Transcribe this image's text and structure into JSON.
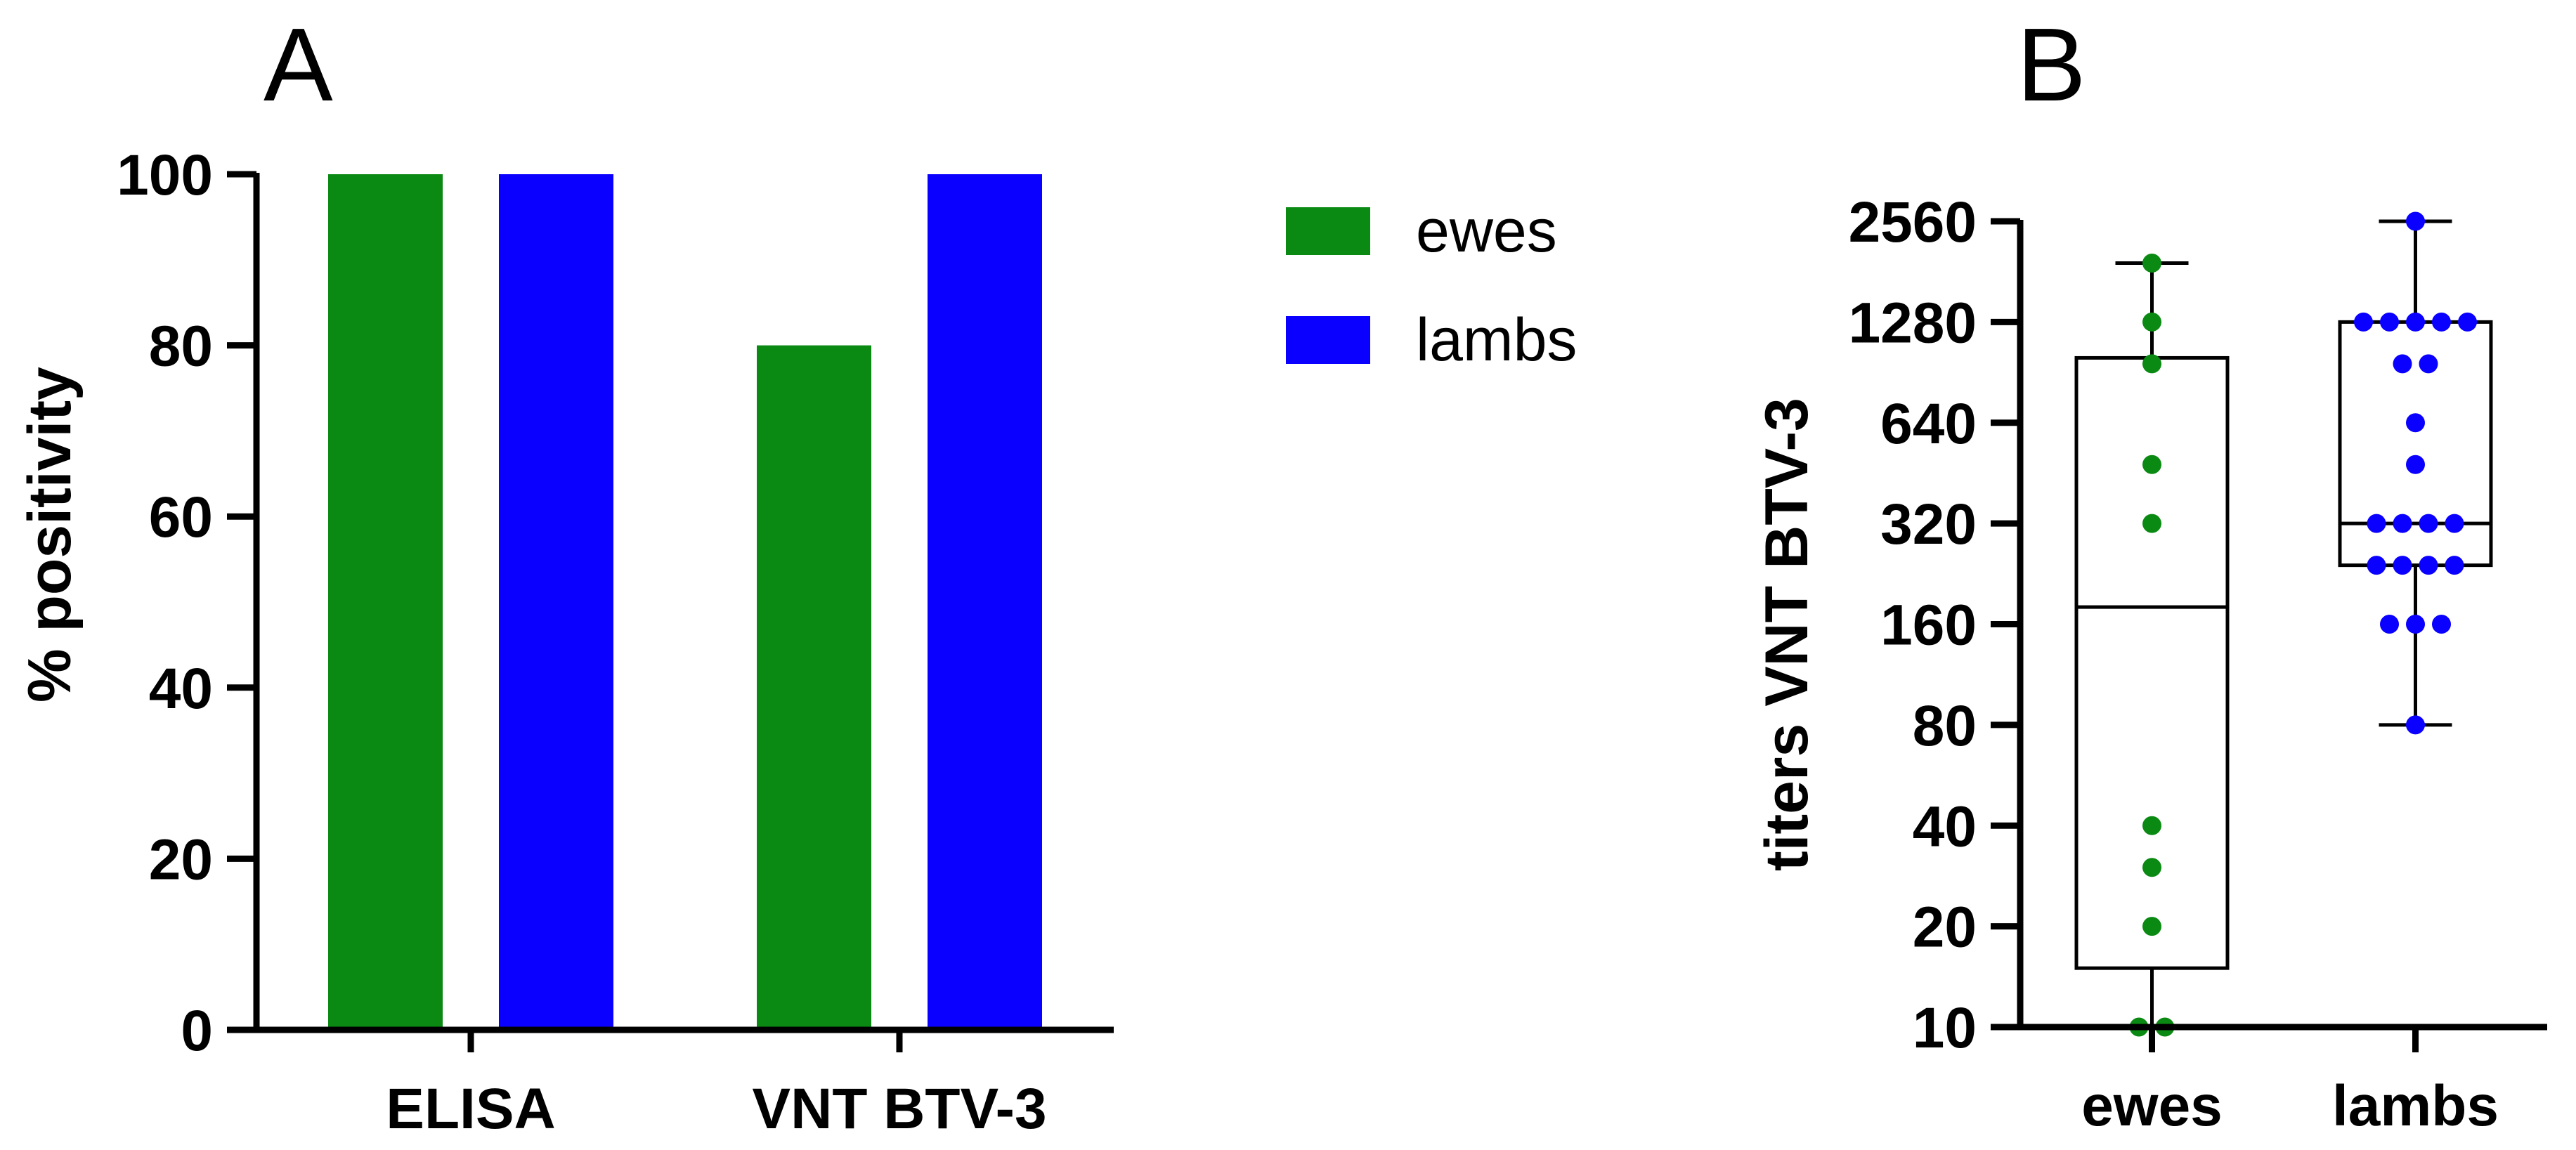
{
  "chart_data": [
    {
      "type": "bar",
      "panel_label": "A",
      "title": "",
      "xlabel": "",
      "ylabel": "% positivity",
      "categories": [
        "ELISA",
        "VNT BTV-3"
      ],
      "series": [
        {
          "name": "ewes",
          "color": "#0b8a13",
          "values": [
            100,
            80
          ]
        },
        {
          "name": "lambs",
          "color": "#0a00ff",
          "values": [
            100,
            100
          ]
        }
      ],
      "ylim": [
        0,
        100
      ],
      "yticks": [
        0,
        20,
        40,
        60,
        80,
        100
      ],
      "grid": false,
      "legend_position": "right"
    },
    {
      "type": "box",
      "panel_label": "B",
      "title": "",
      "xlabel": "",
      "ylabel": "titers VNT BTV-3",
      "y_scale": "log2",
      "ylim": [
        10,
        2560
      ],
      "yticks": [
        10,
        20,
        40,
        80,
        160,
        320,
        640,
        1280,
        2560
      ],
      "grid": false,
      "groups": [
        {
          "name": "ewes",
          "color": "#0b8a13",
          "whisker_low": 10,
          "q1": 15,
          "median": 180,
          "q3": 1000,
          "whisker_high": 1920,
          "points": [
            1920,
            1280,
            960,
            480,
            320,
            40,
            30,
            20,
            10,
            10
          ]
        },
        {
          "name": "lambs",
          "color": "#0a00ff",
          "whisker_low": 80,
          "q1": 240,
          "median": 320,
          "q3": 1280,
          "whisker_high": 2560,
          "points": [
            2560,
            1280,
            1280,
            1280,
            1280,
            1280,
            960,
            960,
            640,
            480,
            320,
            320,
            320,
            320,
            240,
            240,
            240,
            240,
            160,
            160,
            160,
            80
          ]
        }
      ]
    }
  ]
}
